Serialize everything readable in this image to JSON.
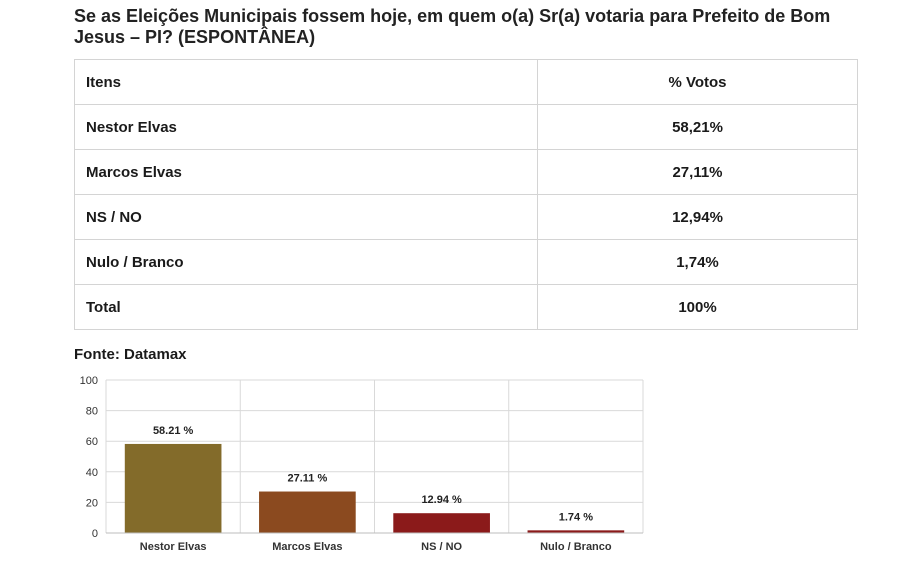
{
  "title": "Se as Eleições Municipais fossem hoje, em quem o(a) Sr(a) votaria para Prefeito de Bom Jesus – PI? (ESPONTÂNEA)",
  "table": {
    "headers": [
      "Itens",
      "% Votos"
    ],
    "rows": [
      [
        "Nestor Elvas",
        "58,21%"
      ],
      [
        "Marcos Elvas",
        "27,11%"
      ],
      [
        "NS / NO",
        "12,94%"
      ],
      [
        "Nulo / Branco",
        "1,74%"
      ],
      [
        "Total",
        "100%"
      ]
    ]
  },
  "source": "Fonte: Datamax",
  "chart_data": {
    "type": "bar",
    "categories": [
      "Nestor Elvas",
      "Marcos Elvas",
      "NS / NO",
      "Nulo / Branco"
    ],
    "values": [
      58.21,
      27.11,
      12.94,
      1.74
    ],
    "value_labels": [
      "58.21 %",
      "27.11 %",
      "12.94 %",
      "1.74 %"
    ],
    "colors": [
      "#836b2a",
      "#8b4a1f",
      "#8b1a1a",
      "#8b1a1a"
    ],
    "ylim": [
      0,
      100
    ],
    "yticks": [
      0,
      20,
      40,
      60,
      80,
      100
    ],
    "grid": true,
    "legend": "none"
  }
}
